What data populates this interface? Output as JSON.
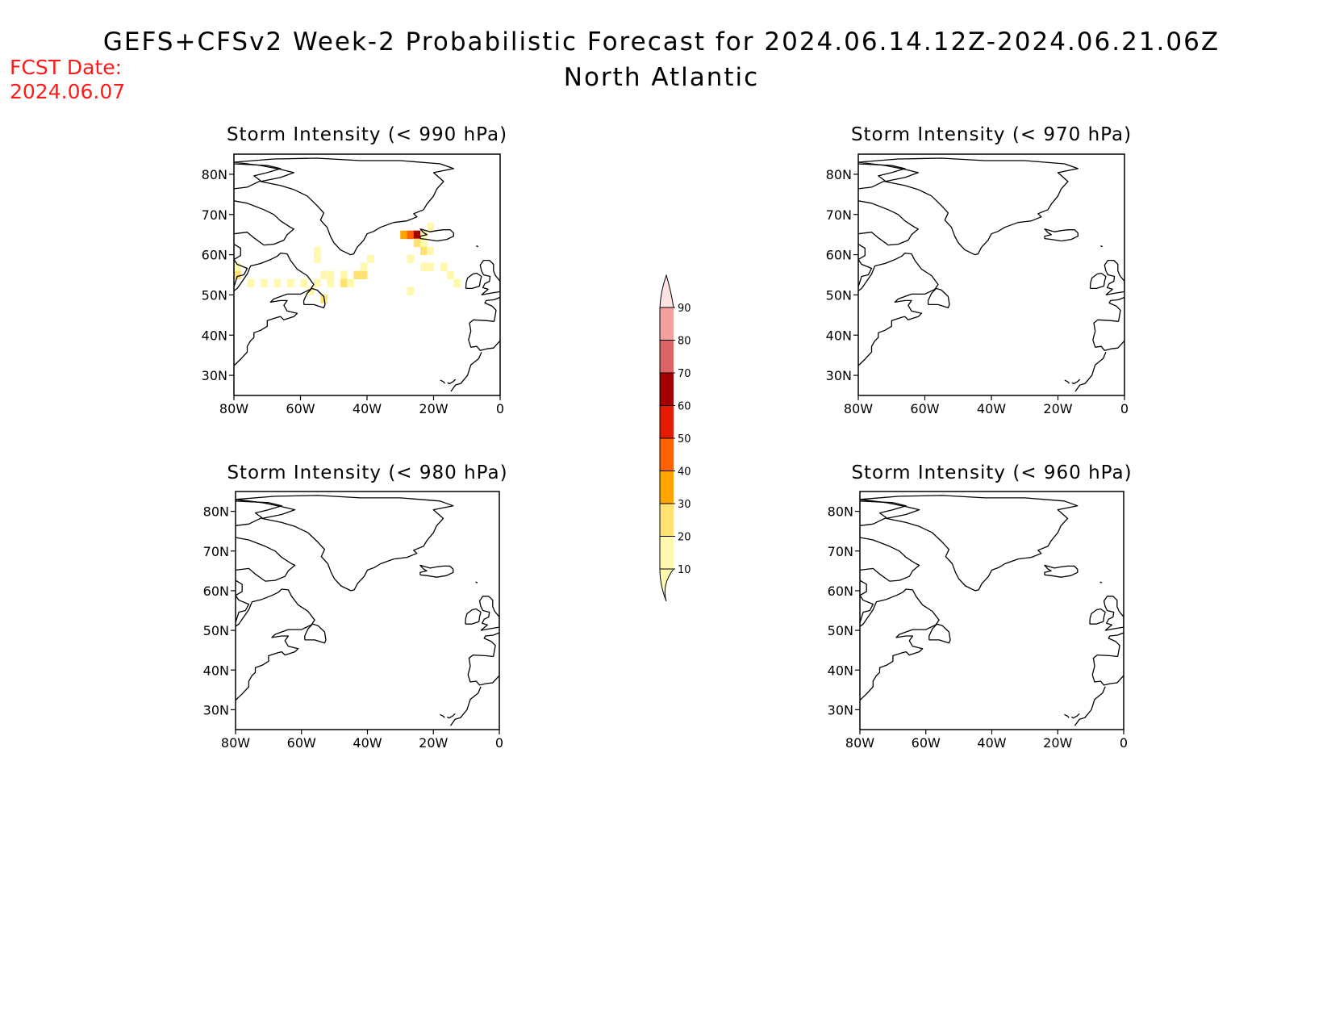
{
  "header": {
    "title": "GEFS+CFSv2 Week-2 Probabilistic Forecast for 2024.06.14.12Z-2024.06.21.06Z",
    "subtitle": "North Atlantic",
    "fcst_label": "FCST Date:",
    "fcst_date": "2024.06.07"
  },
  "axes": {
    "lat_labels": [
      "80N",
      "70N",
      "60N",
      "50N",
      "40N",
      "30N"
    ],
    "lon_labels": [
      "80W",
      "60W",
      "40W",
      "20W",
      "0"
    ]
  },
  "panels": [
    {
      "title": "Storm Intensity (< 990 hPa)"
    },
    {
      "title": "Storm Intensity (< 970 hPa)"
    },
    {
      "title": "Storm Intensity (< 980 hPa)"
    },
    {
      "title": "Storm Intensity (< 960 hPa)"
    }
  ],
  "colorbar": {
    "levels": [
      "10",
      "20",
      "30",
      "40",
      "50",
      "60",
      "70",
      "80",
      "90"
    ],
    "colors": [
      "#fff9b0",
      "#ffe272",
      "#ffa500",
      "#ff6200",
      "#e41b00",
      "#a50000",
      "#dc6464",
      "#f4a0a0",
      "#fde2e2"
    ]
  },
  "chart_data": {
    "type": "heatmap",
    "map_extent": {
      "lon": [
        -80,
        0
      ],
      "lat": [
        25,
        85
      ]
    },
    "units": "probability (%)",
    "panels": [
      {
        "threshold_hpa": 990,
        "cells": [
          {
            "lon": -79,
            "lat": 57,
            "prob": 15
          },
          {
            "lon": -79,
            "lat": 55,
            "prob": 20
          },
          {
            "lon": -75,
            "lat": 53,
            "prob": 15
          },
          {
            "lon": -71,
            "lat": 53,
            "prob": 15
          },
          {
            "lon": -67,
            "lat": 53,
            "prob": 15
          },
          {
            "lon": -63,
            "lat": 53,
            "prob": 15
          },
          {
            "lon": -59,
            "lat": 53,
            "prob": 15
          },
          {
            "lon": -57,
            "lat": 51,
            "prob": 15
          },
          {
            "lon": -55,
            "lat": 53,
            "prob": 15
          },
          {
            "lon": -55,
            "lat": 59,
            "prob": 15
          },
          {
            "lon": -55,
            "lat": 61,
            "prob": 15
          },
          {
            "lon": -53,
            "lat": 55,
            "prob": 15
          },
          {
            "lon": -51,
            "lat": 55,
            "prob": 15
          },
          {
            "lon": -51,
            "lat": 53,
            "prob": 15
          },
          {
            "lon": -53,
            "lat": 49,
            "prob": 25
          },
          {
            "lon": -47,
            "lat": 55,
            "prob": 15
          },
          {
            "lon": -47,
            "lat": 53,
            "prob": 20
          },
          {
            "lon": -45,
            "lat": 53,
            "prob": 15
          },
          {
            "lon": -43,
            "lat": 55,
            "prob": 20
          },
          {
            "lon": -41,
            "lat": 55,
            "prob": 25
          },
          {
            "lon": -41,
            "lat": 57,
            "prob": 15
          },
          {
            "lon": -39,
            "lat": 59,
            "prob": 15
          },
          {
            "lon": -29,
            "lat": 65,
            "prob": 35
          },
          {
            "lon": -27,
            "lat": 65,
            "prob": 45
          },
          {
            "lon": -25,
            "lat": 65,
            "prob": 65
          },
          {
            "lon": -23,
            "lat": 65,
            "prob": 15
          },
          {
            "lon": -21,
            "lat": 67,
            "prob": 15
          },
          {
            "lon": -25,
            "lat": 63,
            "prob": 20
          },
          {
            "lon": -23,
            "lat": 63,
            "prob": 15
          },
          {
            "lon": -23,
            "lat": 61,
            "prob": 20
          },
          {
            "lon": -21,
            "lat": 61,
            "prob": 15
          },
          {
            "lon": -27,
            "lat": 59,
            "prob": 15
          },
          {
            "lon": -23,
            "lat": 57,
            "prob": 15
          },
          {
            "lon": -21,
            "lat": 57,
            "prob": 15
          },
          {
            "lon": -17,
            "lat": 57,
            "prob": 15
          },
          {
            "lon": -15,
            "lat": 55,
            "prob": 15
          },
          {
            "lon": -13,
            "lat": 53,
            "prob": 15
          },
          {
            "lon": -27,
            "lat": 51,
            "prob": 15
          }
        ]
      },
      {
        "threshold_hpa": 970,
        "cells": []
      },
      {
        "threshold_hpa": 980,
        "cells": []
      },
      {
        "threshold_hpa": 960,
        "cells": []
      }
    ]
  }
}
